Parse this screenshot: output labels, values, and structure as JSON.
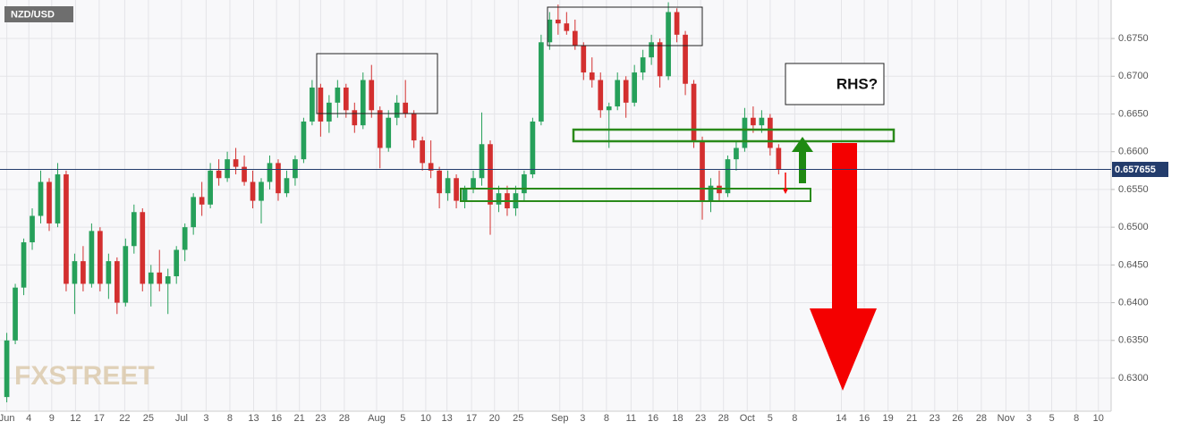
{
  "chart_data": {
    "type": "candlestick",
    "title": "NZD/USD",
    "watermark": "FXSTREET",
    "annotation": "RHS?",
    "up_color": "#26a05a",
    "down_color": "#d32f2f",
    "grid": true,
    "xlim": [
      -0.8,
      130.2
    ],
    "ylim": [
      0.62562,
      0.6801
    ],
    "last_price": 0.657655,
    "yticks": [
      {
        "value": 0.63,
        "label": "0.6300"
      },
      {
        "value": 0.635,
        "label": "0.6350"
      },
      {
        "value": 0.64,
        "label": "0.6400"
      },
      {
        "value": 0.645,
        "label": "0.6450"
      },
      {
        "value": 0.65,
        "label": "0.6500"
      },
      {
        "value": 0.655,
        "label": "0.6550"
      },
      {
        "value": 0.66,
        "label": "0.6600"
      },
      {
        "value": 0.665,
        "label": "0.6650"
      },
      {
        "value": 0.67,
        "label": "0.6700"
      },
      {
        "value": 0.675,
        "label": "0.6750"
      }
    ],
    "xticks": [
      {
        "value": 0.0,
        "label": "Jun"
      },
      {
        "value": 2.6,
        "label": "4"
      },
      {
        "value": 5.3,
        "label": "9"
      },
      {
        "value": 8.1,
        "label": "12"
      },
      {
        "value": 10.9,
        "label": "17"
      },
      {
        "value": 13.9,
        "label": "22"
      },
      {
        "value": 16.7,
        "label": "25"
      },
      {
        "value": 20.6,
        "label": "Jul"
      },
      {
        "value": 23.5,
        "label": "3"
      },
      {
        "value": 26.3,
        "label": "8"
      },
      {
        "value": 29.1,
        "label": "13"
      },
      {
        "value": 31.8,
        "label": "16"
      },
      {
        "value": 34.5,
        "label": "21"
      },
      {
        "value": 37.0,
        "label": "23"
      },
      {
        "value": 39.8,
        "label": "28"
      },
      {
        "value": 43.6,
        "label": "Aug"
      },
      {
        "value": 46.7,
        "label": "5"
      },
      {
        "value": 49.4,
        "label": "10"
      },
      {
        "value": 51.9,
        "label": "13"
      },
      {
        "value": 54.8,
        "label": "17"
      },
      {
        "value": 57.5,
        "label": "20"
      },
      {
        "value": 60.3,
        "label": "25"
      },
      {
        "value": 65.2,
        "label": "Sep"
      },
      {
        "value": 67.9,
        "label": "3"
      },
      {
        "value": 70.7,
        "label": "8"
      },
      {
        "value": 73.6,
        "label": "11"
      },
      {
        "value": 76.2,
        "label": "16"
      },
      {
        "value": 79.1,
        "label": "18"
      },
      {
        "value": 81.8,
        "label": "23"
      },
      {
        "value": 84.5,
        "label": "28"
      },
      {
        "value": 87.3,
        "label": "Oct"
      },
      {
        "value": 90.0,
        "label": "5"
      },
      {
        "value": 92.9,
        "label": "8"
      },
      {
        "value": 98.4,
        "label": "14"
      },
      {
        "value": 101.1,
        "label": "16"
      },
      {
        "value": 103.9,
        "label": "19"
      },
      {
        "value": 106.7,
        "label": "21"
      },
      {
        "value": 109.4,
        "label": "23"
      },
      {
        "value": 112.1,
        "label": "26"
      },
      {
        "value": 114.9,
        "label": "28"
      },
      {
        "value": 117.8,
        "label": "Nov"
      },
      {
        "value": 120.5,
        "label": "3"
      },
      {
        "value": 123.2,
        "label": "5"
      },
      {
        "value": 126.1,
        "label": "8"
      },
      {
        "value": 128.7,
        "label": "10"
      }
    ],
    "x": [
      0,
      1,
      2,
      3,
      4,
      5,
      6,
      7,
      8,
      9,
      10,
      11,
      12,
      13,
      14,
      15,
      16,
      17,
      18,
      19,
      20,
      21,
      22,
      23,
      24,
      25,
      26,
      27,
      28,
      29,
      30,
      31,
      32,
      33,
      34,
      35,
      36,
      37,
      38,
      39,
      40,
      41,
      42,
      43,
      44,
      45,
      46,
      47,
      48,
      49,
      50,
      51,
      52,
      53,
      54,
      55,
      56,
      57,
      58,
      59,
      60,
      61,
      62,
      63,
      64,
      65,
      66,
      67,
      68,
      69,
      70,
      71,
      72,
      73,
      74,
      75,
      76,
      77,
      78,
      79,
      80,
      81,
      82,
      83,
      84,
      85,
      86,
      87,
      88,
      89,
      90,
      91
    ],
    "open": [
      0.6275,
      0.635,
      0.642,
      0.648,
      0.6515,
      0.656,
      0.6505,
      0.657,
      0.6425,
      0.6455,
      0.6425,
      0.6495,
      0.6425,
      0.6455,
      0.64,
      0.6475,
      0.652,
      0.6425,
      0.644,
      0.6425,
      0.6435,
      0.647,
      0.65,
      0.654,
      0.653,
      0.6575,
      0.6565,
      0.659,
      0.658,
      0.656,
      0.6535,
      0.656,
      0.6585,
      0.6545,
      0.6565,
      0.659,
      0.664,
      0.6685,
      0.664,
      0.6665,
      0.6685,
      0.6655,
      0.6635,
      0.6695,
      0.6655,
      0.6605,
      0.6645,
      0.6665,
      0.665,
      0.6615,
      0.6585,
      0.6575,
      0.6545,
      0.6565,
      0.6535,
      0.655,
      0.6565,
      0.661,
      0.653,
      0.6545,
      0.6525,
      0.6545,
      0.657,
      0.664,
      0.6745,
      0.6775,
      0.677,
      0.676,
      0.674,
      0.6705,
      0.6695,
      0.6655,
      0.666,
      0.6695,
      0.6665,
      0.6705,
      0.6725,
      0.6745,
      0.67,
      0.6785,
      0.6755,
      0.669,
      0.6615,
      0.6535,
      0.6555,
      0.6545,
      0.659,
      0.6605,
      0.6645,
      0.6635,
      0.6645,
      0.6605
    ],
    "high": [
      0.636,
      0.6425,
      0.6485,
      0.6525,
      0.6575,
      0.6565,
      0.6585,
      0.6575,
      0.6465,
      0.6475,
      0.6505,
      0.65,
      0.6465,
      0.646,
      0.6485,
      0.653,
      0.6525,
      0.645,
      0.647,
      0.6445,
      0.6475,
      0.6505,
      0.6545,
      0.656,
      0.6585,
      0.659,
      0.66,
      0.6605,
      0.6595,
      0.6575,
      0.6565,
      0.6595,
      0.659,
      0.6575,
      0.6595,
      0.6645,
      0.6695,
      0.669,
      0.6675,
      0.6695,
      0.669,
      0.6665,
      0.6705,
      0.6715,
      0.666,
      0.6655,
      0.6675,
      0.6695,
      0.6655,
      0.662,
      0.6615,
      0.658,
      0.6575,
      0.657,
      0.6555,
      0.6575,
      0.6652,
      0.6615,
      0.6555,
      0.6555,
      0.6555,
      0.6575,
      0.6645,
      0.6755,
      0.6785,
      0.6795,
      0.6785,
      0.6775,
      0.6745,
      0.6725,
      0.6705,
      0.6665,
      0.6705,
      0.67,
      0.6715,
      0.6735,
      0.6755,
      0.675,
      0.6798,
      0.679,
      0.676,
      0.6695,
      0.662,
      0.6565,
      0.6575,
      0.6595,
      0.6615,
      0.6658,
      0.666,
      0.6655,
      0.665,
      0.661
    ],
    "low": [
      0.6268,
      0.6345,
      0.641,
      0.647,
      0.6505,
      0.6495,
      0.65,
      0.6415,
      0.6385,
      0.6415,
      0.642,
      0.6415,
      0.6405,
      0.6385,
      0.6395,
      0.6465,
      0.6415,
      0.6395,
      0.6415,
      0.6385,
      0.6425,
      0.6455,
      0.649,
      0.6515,
      0.6525,
      0.6555,
      0.656,
      0.657,
      0.6555,
      0.6525,
      0.6505,
      0.655,
      0.6535,
      0.654,
      0.6555,
      0.6585,
      0.6635,
      0.662,
      0.6625,
      0.6645,
      0.6645,
      0.6625,
      0.663,
      0.6645,
      0.6578,
      0.66,
      0.6635,
      0.6645,
      0.6605,
      0.6575,
      0.6565,
      0.6525,
      0.6535,
      0.6525,
      0.6525,
      0.6545,
      0.6555,
      0.649,
      0.652,
      0.6515,
      0.6515,
      0.6535,
      0.6565,
      0.6635,
      0.6735,
      0.6755,
      0.6755,
      0.6735,
      0.6695,
      0.6685,
      0.6645,
      0.6605,
      0.6655,
      0.6645,
      0.666,
      0.6695,
      0.6715,
      0.6685,
      0.6695,
      0.6745,
      0.6675,
      0.6605,
      0.651,
      0.652,
      0.6535,
      0.654,
      0.6575,
      0.66,
      0.6625,
      0.6625,
      0.6595,
      0.657
    ],
    "close": [
      0.635,
      0.642,
      0.648,
      0.6515,
      0.656,
      0.6505,
      0.657,
      0.6425,
      0.6455,
      0.6425,
      0.6495,
      0.6425,
      0.6455,
      0.64,
      0.6475,
      0.652,
      0.6425,
      0.644,
      0.6425,
      0.6435,
      0.647,
      0.65,
      0.654,
      0.653,
      0.6575,
      0.6565,
      0.659,
      0.658,
      0.656,
      0.6535,
      0.656,
      0.6585,
      0.6545,
      0.6565,
      0.659,
      0.664,
      0.6685,
      0.664,
      0.6665,
      0.6685,
      0.6655,
      0.6635,
      0.6695,
      0.6655,
      0.6605,
      0.6645,
      0.6665,
      0.665,
      0.6615,
      0.6585,
      0.6575,
      0.6545,
      0.6565,
      0.6535,
      0.655,
      0.6565,
      0.661,
      0.653,
      0.6545,
      0.6525,
      0.6545,
      0.657,
      0.664,
      0.6745,
      0.6775,
      0.677,
      0.676,
      0.674,
      0.6705,
      0.6695,
      0.6655,
      0.666,
      0.6695,
      0.6665,
      0.6705,
      0.6725,
      0.6745,
      0.67,
      0.6785,
      0.6755,
      0.669,
      0.6615,
      0.6535,
      0.6555,
      0.6545,
      0.659,
      0.6605,
      0.6645,
      0.6635,
      0.6645,
      0.6605,
      0.657655
    ]
  }
}
